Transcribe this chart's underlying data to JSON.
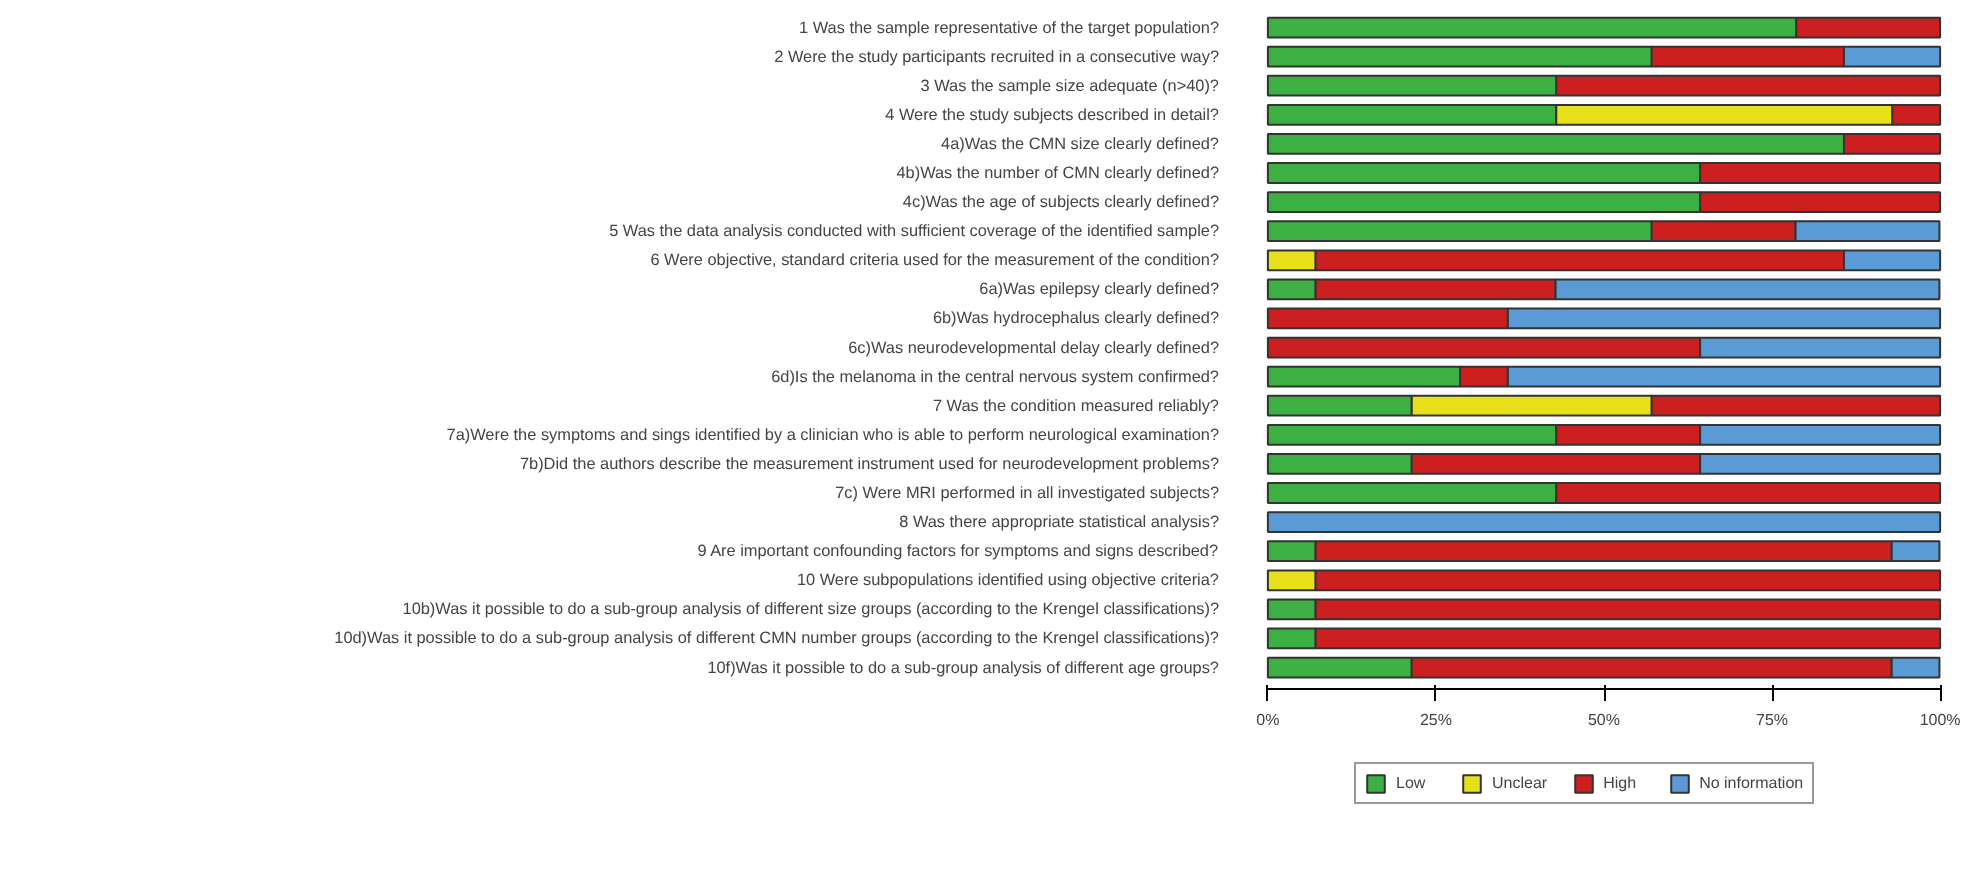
{
  "chart_data": {
    "type": "bar",
    "orientation": "horizontal",
    "stacked": true,
    "categories": [
      "1 Was the sample representative of the target population?",
      "2 Were the study participants recruited in a consecutive way?",
      "3 Was the sample size adequate (n>40)?",
      "4 Were the study subjects described in detail?",
      "4a)Was the CMN size clearly defined?",
      "4b)Was the number of CMN clearly defined?",
      "4c)Was the age of subjects clearly defined?",
      "5 Was the data analysis conducted with sufficient coverage of the identified sample?",
      "6 Were objective, standard criteria used for the measurement of the condition?",
      "6a)Was epilepsy clearly defined?",
      "6b)Was hydrocephalus clearly defined?",
      "6c)Was neurodevelopmental delay clearly defined?",
      "6d)Is the melanoma in the central nervous system confirmed?",
      "7 Was the condition measured reliably?",
      "7a)Were the symptoms and sings identified by a clinician who is able to perform neurological examination?",
      "7b)Did the authors describe the measurement instrument used for neurodevelopment problems?",
      "7c) Were MRI performed in all investigated subjects?",
      "8 Was there appropriate statistical analysis?",
      "9 Are important confounding factors for symptoms and signs described?",
      "10 Were subpopulations identified using objective criteria?",
      "10b)Was it possible to do a sub-group analysis of different size groups (according to the Krengel classifications)?",
      "10d)Was it possible to do a sub-group analysis of different CMN number groups (according to the Krengel classifications)?",
      "10f)Was it possible to do a sub-group analysis of different age groups?"
    ],
    "series": [
      {
        "name": "Low",
        "color": "#3cb043",
        "values": [
          78.6,
          57.1,
          42.9,
          42.9,
          85.7,
          64.3,
          64.3,
          57.1,
          0,
          7.1,
          0,
          0,
          28.6,
          21.4,
          42.9,
          21.4,
          42.9,
          0,
          7.1,
          0,
          7.1,
          7.1,
          21.4
        ]
      },
      {
        "name": "Unclear",
        "color": "#e8e01a",
        "values": [
          0,
          0,
          0,
          50,
          0,
          0,
          0,
          0,
          7.1,
          0,
          0,
          0,
          0,
          35.7,
          0,
          0,
          0,
          0,
          0,
          7.1,
          0,
          0,
          0
        ]
      },
      {
        "name": "High",
        "color": "#cc1f1f",
        "values": [
          21.4,
          28.6,
          57.1,
          7.1,
          14.3,
          35.7,
          35.7,
          21.4,
          78.6,
          35.7,
          35.7,
          64.3,
          7.1,
          42.9,
          21.4,
          42.9,
          57.1,
          0,
          85.7,
          92.9,
          92.9,
          92.9,
          71.4
        ]
      },
      {
        "name": "No information",
        "color": "#5b9bd5",
        "values": [
          0,
          14.3,
          0,
          0,
          0,
          0,
          0,
          21.4,
          14.3,
          57.1,
          64.3,
          35.7,
          64.3,
          0,
          35.7,
          35.7,
          0,
          100,
          7.1,
          0,
          0,
          0,
          7.1
        ]
      }
    ],
    "xlim": [
      0,
      100
    ],
    "xticks": [
      {
        "value": 0,
        "label": "0%"
      },
      {
        "value": 25,
        "label": "25%"
      },
      {
        "value": 50,
        "label": "50%"
      },
      {
        "value": 75,
        "label": "75%"
      },
      {
        "value": 100,
        "label": "100%"
      }
    ],
    "grid": false,
    "legend": "bottom"
  }
}
